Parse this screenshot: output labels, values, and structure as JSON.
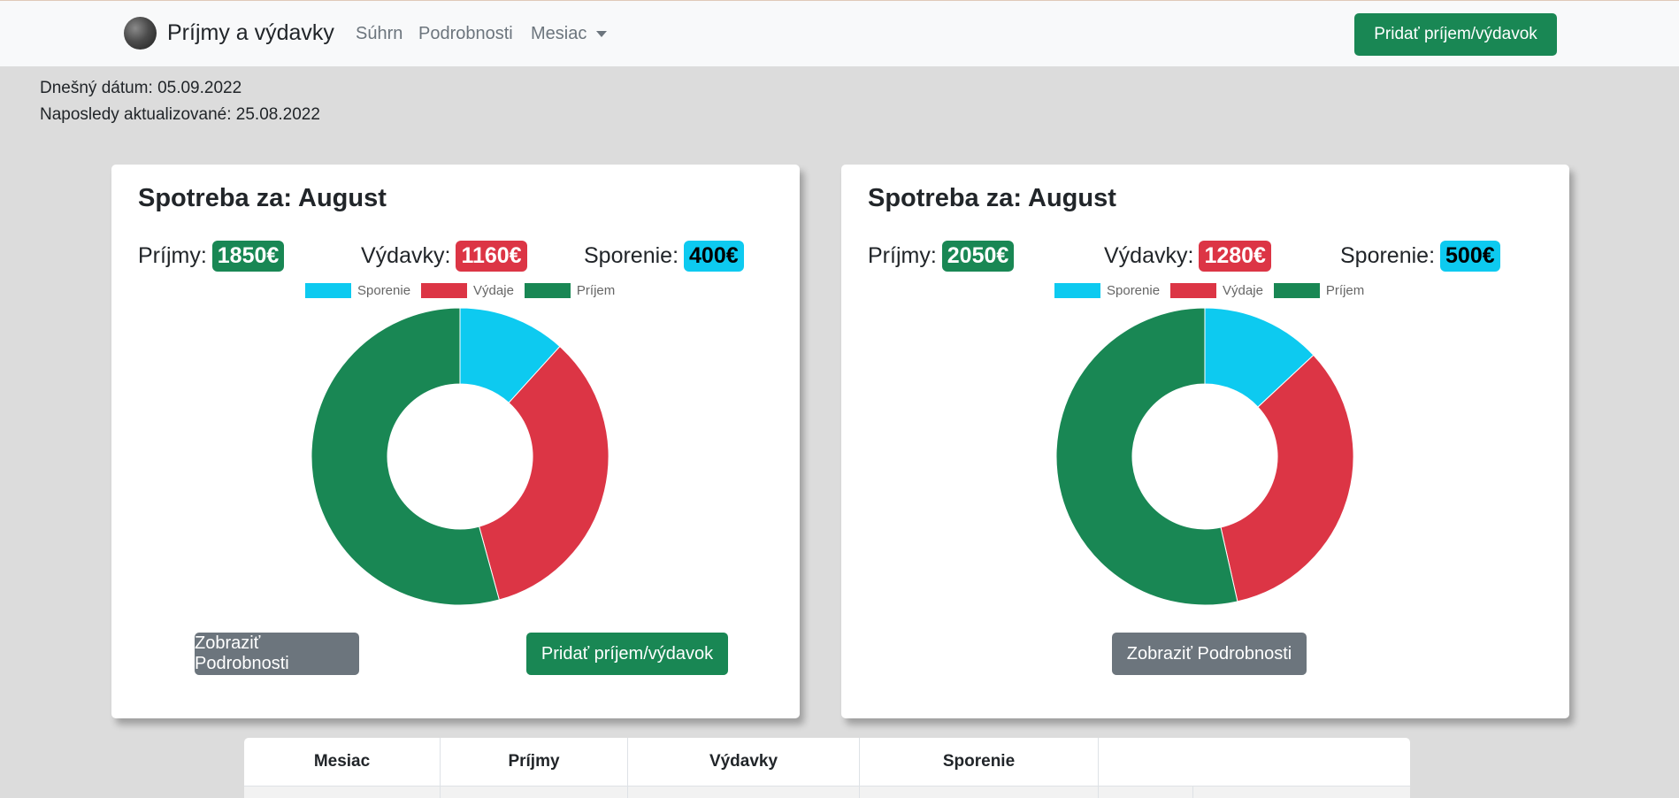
{
  "navbar": {
    "brand": "Príjmy a výdavky",
    "links": [
      "Súhrn",
      "Podrobnosti",
      "Mesiac"
    ],
    "add_button": "Pridať príjem/výdavok"
  },
  "info": {
    "today": "Dnešný dátum: 05.09.2022",
    "updated": "Naposledy aktualizované: 25.08.2022"
  },
  "cards": [
    {
      "title": "Spotreba za: August",
      "income_label": "Príjmy:",
      "income": "1850€",
      "expense_label": "Výdavky:",
      "expense": "1160€",
      "savings_label": "Sporenie:",
      "savings": "400€",
      "details_button": "Zobraziť Podrobnosti",
      "add_button": "Pridať príjem/výdavok"
    },
    {
      "title": "Spotreba za: August",
      "income_label": "Príjmy:",
      "income": "2050€",
      "expense_label": "Výdavky:",
      "expense": "1280€",
      "savings_label": "Sporenie:",
      "savings": "500€",
      "details_button": "Zobraziť Podrobnosti"
    }
  ],
  "table": {
    "headers": [
      "Mesiac",
      "Príjmy",
      "Výdavky",
      "Sporenie",
      ""
    ]
  },
  "colors": {
    "savings": "#0dcaf0",
    "expense": "#dc3545",
    "income": "#198754"
  },
  "chart_data": [
    {
      "type": "pie",
      "title": "",
      "categories": [
        "Sporenie",
        "Výdaje",
        "Príjem"
      ],
      "values": [
        400,
        1160,
        1850
      ],
      "colors": [
        "#0dcaf0",
        "#dc3545",
        "#198754"
      ],
      "legend": "top",
      "donut": true
    },
    {
      "type": "pie",
      "title": "",
      "categories": [
        "Sporenie",
        "Výdaje",
        "Príjem"
      ],
      "values": [
        500,
        1280,
        2050
      ],
      "colors": [
        "#0dcaf0",
        "#dc3545",
        "#198754"
      ],
      "legend": "top",
      "donut": true
    }
  ]
}
